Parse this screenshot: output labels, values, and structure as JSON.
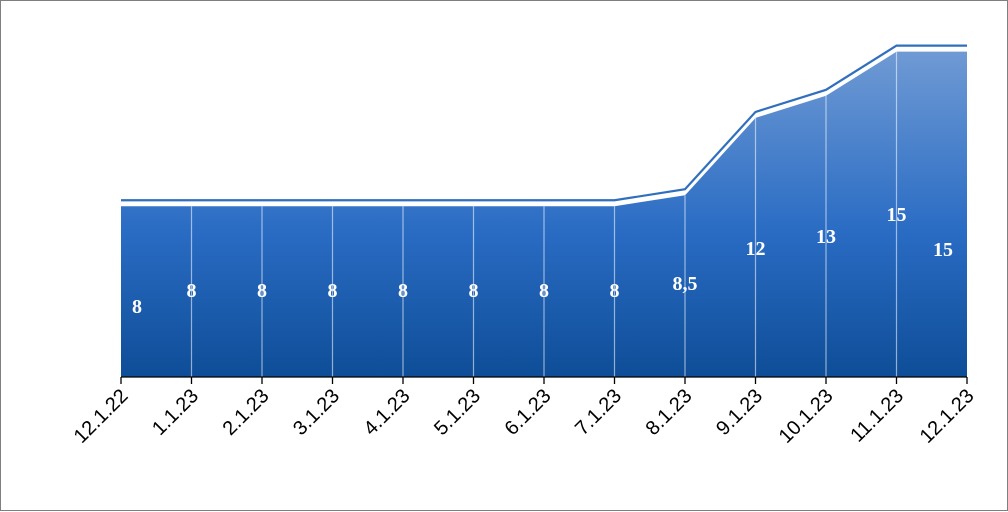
{
  "chart_data": {
    "type": "area",
    "categories": [
      "12.1.22",
      "1.1.23",
      "2.1.23",
      "3.1.23",
      "4.1.23",
      "5.1.23",
      "6.1.23",
      "7.1.23",
      "8.1.23",
      "9.1.23",
      "10.1.23",
      "11.1.23",
      "12.1.23"
    ],
    "values": [
      8,
      8,
      8,
      8,
      8,
      8,
      8,
      8,
      8.5,
      12,
      13,
      15,
      15
    ],
    "data_labels": [
      "8",
      "8",
      "8",
      "8",
      "8",
      "8",
      "8",
      "8",
      "8,5",
      "12",
      "13",
      "15",
      "15"
    ],
    "title": "",
    "xlabel": "",
    "ylabel": "",
    "ylim": [
      0,
      15.3
    ],
    "grid": false,
    "legend": "none",
    "colors": {
      "area_top": "#6f9ad4",
      "area_mid": "#2a6cc4",
      "area_bottom": "#0e4d97",
      "line": "#2f6fbe",
      "edge": "#ffffff",
      "axis": "#000000"
    }
  }
}
